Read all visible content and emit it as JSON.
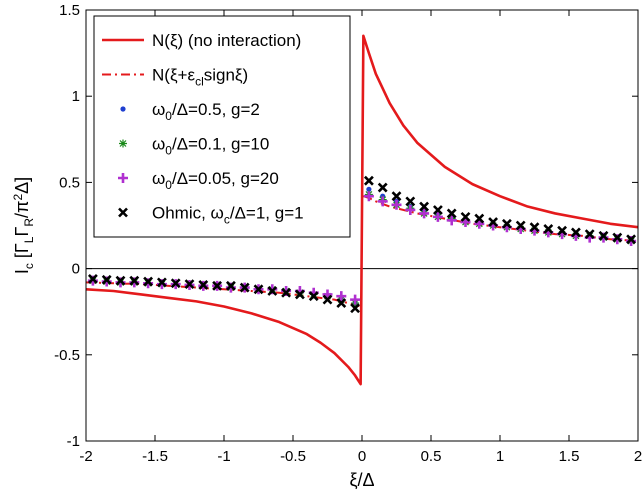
{
  "chart_data": {
    "type": "line",
    "xlabel": "ξ/Δ",
    "ylabel": "I_c [Γ_L Γ_R/π²Δ]",
    "xlim": [
      -2,
      2
    ],
    "ylim": [
      -1,
      1.5
    ],
    "xticks": [
      "-2",
      "-1.5",
      "-1",
      "-0.5",
      "0",
      "0.5",
      "1",
      "1.5",
      "2"
    ],
    "yticks": [
      "-1",
      "-0.5",
      "0",
      "0.5",
      "1",
      "1.5"
    ],
    "xtick_values": [
      -2,
      -1.5,
      -1,
      -0.5,
      0,
      0.5,
      1,
      1.5,
      2
    ],
    "ytick_values": [
      -1,
      -0.5,
      0,
      0.5,
      1,
      1.5
    ],
    "zero_line": true,
    "legend_position": "top-left",
    "legend": [
      "N(ξ) (no interaction)",
      "N(ξ+ε_cl signξ)",
      "ω_0/Δ=0.5, g=2",
      "ω_0/Δ=0.1, g=10",
      "ω_0/Δ=0.05, g=20",
      "Ohmic, ω_c/Δ=1, g=1"
    ],
    "series": [
      {
        "name": "N(ξ) (no interaction)",
        "style": "solid-line",
        "color": "#e41a1c",
        "x": [
          -2,
          -1.8,
          -1.6,
          -1.4,
          -1.2,
          -1.0,
          -0.8,
          -0.6,
          -0.4,
          -0.3,
          -0.2,
          -0.1,
          -0.05,
          -0.01,
          0.01,
          0.05,
          0.1,
          0.2,
          0.3,
          0.4,
          0.6,
          0.8,
          1.0,
          1.2,
          1.4,
          1.6,
          1.8,
          2.0
        ],
        "y": [
          -0.12,
          -0.13,
          -0.15,
          -0.17,
          -0.19,
          -0.22,
          -0.26,
          -0.31,
          -0.38,
          -0.43,
          -0.49,
          -0.57,
          -0.62,
          -0.67,
          1.35,
          1.25,
          1.13,
          0.96,
          0.83,
          0.73,
          0.59,
          0.49,
          0.42,
          0.36,
          0.32,
          0.29,
          0.26,
          0.24
        ]
      },
      {
        "name": "N(ξ+ε_cl signξ)",
        "style": "dash-dot-line",
        "color": "#e41a1c",
        "x": [
          -2,
          -1.8,
          -1.6,
          -1.4,
          -1.2,
          -1.0,
          -0.8,
          -0.6,
          -0.4,
          -0.2,
          -0.1,
          -0.01,
          0.01,
          0.05,
          0.1,
          0.2,
          0.4,
          0.6,
          0.8,
          1.0,
          1.2,
          1.4,
          1.6,
          1.8,
          2.0
        ],
        "y": [
          -0.08,
          -0.085,
          -0.09,
          -0.1,
          -0.11,
          -0.12,
          -0.13,
          -0.14,
          -0.16,
          -0.18,
          -0.2,
          -0.22,
          0.42,
          0.41,
          0.39,
          0.36,
          0.32,
          0.29,
          0.26,
          0.24,
          0.22,
          0.2,
          0.19,
          0.17,
          0.16
        ]
      },
      {
        "name": "ω_0/Δ=0.5, g=2",
        "style": "dot",
        "color": "#1f3fd0",
        "x": [
          -1.95,
          -1.85,
          -1.75,
          -1.65,
          -1.55,
          -1.45,
          -1.35,
          -1.25,
          -1.15,
          -1.05,
          -0.95,
          -0.85,
          -0.75,
          -0.65,
          -0.55,
          -0.45,
          -0.35,
          -0.25,
          -0.15,
          -0.05,
          0.05,
          0.15,
          0.25,
          0.35,
          0.45,
          0.55,
          0.65,
          0.75,
          0.85,
          0.95,
          1.05,
          1.15,
          1.25,
          1.35,
          1.45,
          1.55,
          1.65,
          1.75,
          1.85,
          1.95
        ],
        "y": [
          -0.07,
          -0.075,
          -0.08,
          -0.08,
          -0.085,
          -0.09,
          -0.09,
          -0.095,
          -0.1,
          -0.1,
          -0.11,
          -0.11,
          -0.12,
          -0.12,
          -0.13,
          -0.14,
          -0.15,
          -0.16,
          -0.18,
          -0.2,
          0.46,
          0.42,
          0.39,
          0.36,
          0.33,
          0.31,
          0.3,
          0.28,
          0.27,
          0.25,
          0.24,
          0.23,
          0.22,
          0.21,
          0.2,
          0.2,
          0.19,
          0.18,
          0.17,
          0.17
        ]
      },
      {
        "name": "ω_0/Δ=0.1, g=10",
        "style": "star",
        "color": "#1a8a1a",
        "x": [
          -1.95,
          -1.85,
          -1.75,
          -1.65,
          -1.55,
          -1.45,
          -1.35,
          -1.25,
          -1.15,
          -1.05,
          -0.95,
          -0.85,
          -0.75,
          -0.65,
          -0.55,
          -0.45,
          -0.35,
          -0.25,
          -0.15,
          -0.05,
          0.05,
          0.15,
          0.25,
          0.35,
          0.45,
          0.55,
          0.65,
          0.75,
          0.85,
          0.95,
          1.05,
          1.15,
          1.25,
          1.35,
          1.45,
          1.55,
          1.65,
          1.75,
          1.85,
          1.95
        ],
        "y": [
          -0.07,
          -0.075,
          -0.08,
          -0.08,
          -0.085,
          -0.09,
          -0.09,
          -0.095,
          -0.1,
          -0.1,
          -0.11,
          -0.11,
          -0.12,
          -0.12,
          -0.13,
          -0.14,
          -0.15,
          -0.16,
          -0.18,
          -0.2,
          0.43,
          0.4,
          0.37,
          0.35,
          0.32,
          0.3,
          0.29,
          0.27,
          0.26,
          0.25,
          0.24,
          0.23,
          0.22,
          0.21,
          0.2,
          0.19,
          0.19,
          0.18,
          0.17,
          0.16
        ]
      },
      {
        "name": "ω_0/Δ=0.05, g=20",
        "style": "plus",
        "color": "#b030d0",
        "x": [
          -1.95,
          -1.85,
          -1.75,
          -1.65,
          -1.55,
          -1.45,
          -1.35,
          -1.25,
          -1.15,
          -1.05,
          -0.95,
          -0.85,
          -0.75,
          -0.65,
          -0.55,
          -0.45,
          -0.35,
          -0.25,
          -0.15,
          -0.05,
          0.05,
          0.15,
          0.25,
          0.35,
          0.45,
          0.55,
          0.65,
          0.75,
          0.85,
          0.95,
          1.05,
          1.15,
          1.25,
          1.35,
          1.45,
          1.55,
          1.65,
          1.75,
          1.85,
          1.95
        ],
        "y": [
          -0.07,
          -0.075,
          -0.08,
          -0.08,
          -0.085,
          -0.09,
          -0.09,
          -0.095,
          -0.1,
          -0.1,
          -0.11,
          -0.11,
          -0.12,
          -0.12,
          -0.13,
          -0.13,
          -0.14,
          -0.15,
          -0.16,
          -0.18,
          0.42,
          0.39,
          0.37,
          0.34,
          0.32,
          0.3,
          0.28,
          0.27,
          0.26,
          0.25,
          0.24,
          0.23,
          0.22,
          0.21,
          0.2,
          0.19,
          0.18,
          0.18,
          0.17,
          0.16
        ]
      },
      {
        "name": "Ohmic, ω_c/Δ=1, g=1",
        "style": "x-cross",
        "color": "#000000",
        "x": [
          -1.95,
          -1.85,
          -1.75,
          -1.65,
          -1.55,
          -1.45,
          -1.35,
          -1.25,
          -1.15,
          -1.05,
          -0.95,
          -0.85,
          -0.75,
          -0.65,
          -0.55,
          -0.45,
          -0.35,
          -0.25,
          -0.15,
          -0.05,
          0.05,
          0.15,
          0.25,
          0.35,
          0.45,
          0.55,
          0.65,
          0.75,
          0.85,
          0.95,
          1.05,
          1.15,
          1.25,
          1.35,
          1.45,
          1.55,
          1.65,
          1.75,
          1.85,
          1.95
        ],
        "y": [
          -0.06,
          -0.065,
          -0.07,
          -0.07,
          -0.075,
          -0.08,
          -0.085,
          -0.09,
          -0.095,
          -0.1,
          -0.1,
          -0.11,
          -0.12,
          -0.13,
          -0.14,
          -0.15,
          -0.16,
          -0.18,
          -0.2,
          -0.23,
          0.51,
          0.47,
          0.42,
          0.39,
          0.36,
          0.34,
          0.32,
          0.3,
          0.29,
          0.27,
          0.26,
          0.25,
          0.24,
          0.23,
          0.22,
          0.21,
          0.2,
          0.19,
          0.18,
          0.17
        ]
      }
    ]
  }
}
